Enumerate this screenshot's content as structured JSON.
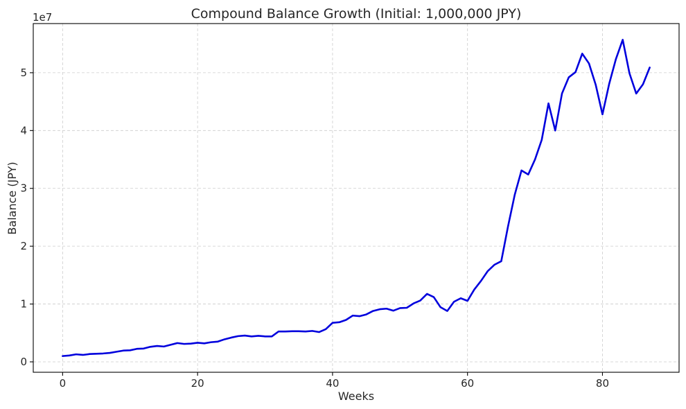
{
  "chart_data": {
    "type": "line",
    "title": "Compound Balance Growth (Initial: 1,000,000 JPY)",
    "xlabel": "Weeks",
    "ylabel": "Balance (JPY)",
    "y_offset_label": "1e7",
    "xlim": [
      -4.35,
      91.35
    ],
    "ylim": [
      -1800000,
      58500000
    ],
    "x_ticks": [
      0,
      20,
      40,
      60,
      80
    ],
    "x_tick_labels": [
      "0",
      "20",
      "40",
      "60",
      "80"
    ],
    "y_ticks": [
      0,
      10000000,
      20000000,
      30000000,
      40000000,
      50000000
    ],
    "y_tick_labels": [
      "0",
      "1",
      "2",
      "3",
      "4",
      "5"
    ],
    "grid": true,
    "series": [
      {
        "color": "#0000dd",
        "x": [
          0,
          1,
          2,
          3,
          4,
          5,
          6,
          7,
          8,
          9,
          10,
          11,
          12,
          13,
          14,
          15,
          16,
          17,
          18,
          19,
          20,
          21,
          22,
          23,
          24,
          25,
          26,
          27,
          28,
          29,
          30,
          31,
          32,
          33,
          34,
          35,
          36,
          37,
          38,
          39,
          40,
          41,
          42,
          43,
          44,
          45,
          46,
          47,
          48,
          49,
          50,
          51,
          52,
          53,
          54,
          55,
          56,
          57,
          58,
          59,
          60,
          61,
          62,
          63,
          64,
          65,
          66,
          67,
          68,
          69,
          70,
          71,
          72,
          73,
          74,
          75,
          76,
          77,
          78,
          79,
          80,
          81,
          82,
          83,
          84,
          85,
          86,
          87
        ],
        "values": [
          1000000,
          1100000,
          1300000,
          1200000,
          1350000,
          1400000,
          1450000,
          1550000,
          1750000,
          1950000,
          2000000,
          2250000,
          2300000,
          2600000,
          2750000,
          2650000,
          2950000,
          3250000,
          3100000,
          3150000,
          3300000,
          3200000,
          3400000,
          3500000,
          3900000,
          4200000,
          4450000,
          4550000,
          4400000,
          4500000,
          4400000,
          4400000,
          5250000,
          5250000,
          5300000,
          5300000,
          5250000,
          5350000,
          5150000,
          5650000,
          6750000,
          6850000,
          7250000,
          8000000,
          7900000,
          8200000,
          8800000,
          9100000,
          9200000,
          8850000,
          9300000,
          9350000,
          10100000,
          10600000,
          11750000,
          11200000,
          9450000,
          8800000,
          10400000,
          11000000,
          10550000,
          12500000,
          14000000,
          15700000,
          16800000,
          17400000,
          23400000,
          28900000,
          33100000,
          32400000,
          35000000,
          38400000,
          44700000,
          40000000,
          46400000,
          49200000,
          50100000,
          53300000,
          51600000,
          47900000,
          42800000,
          48100000,
          52400000,
          55700000,
          49900000,
          46400000,
          48000000,
          50900000
        ]
      }
    ]
  }
}
